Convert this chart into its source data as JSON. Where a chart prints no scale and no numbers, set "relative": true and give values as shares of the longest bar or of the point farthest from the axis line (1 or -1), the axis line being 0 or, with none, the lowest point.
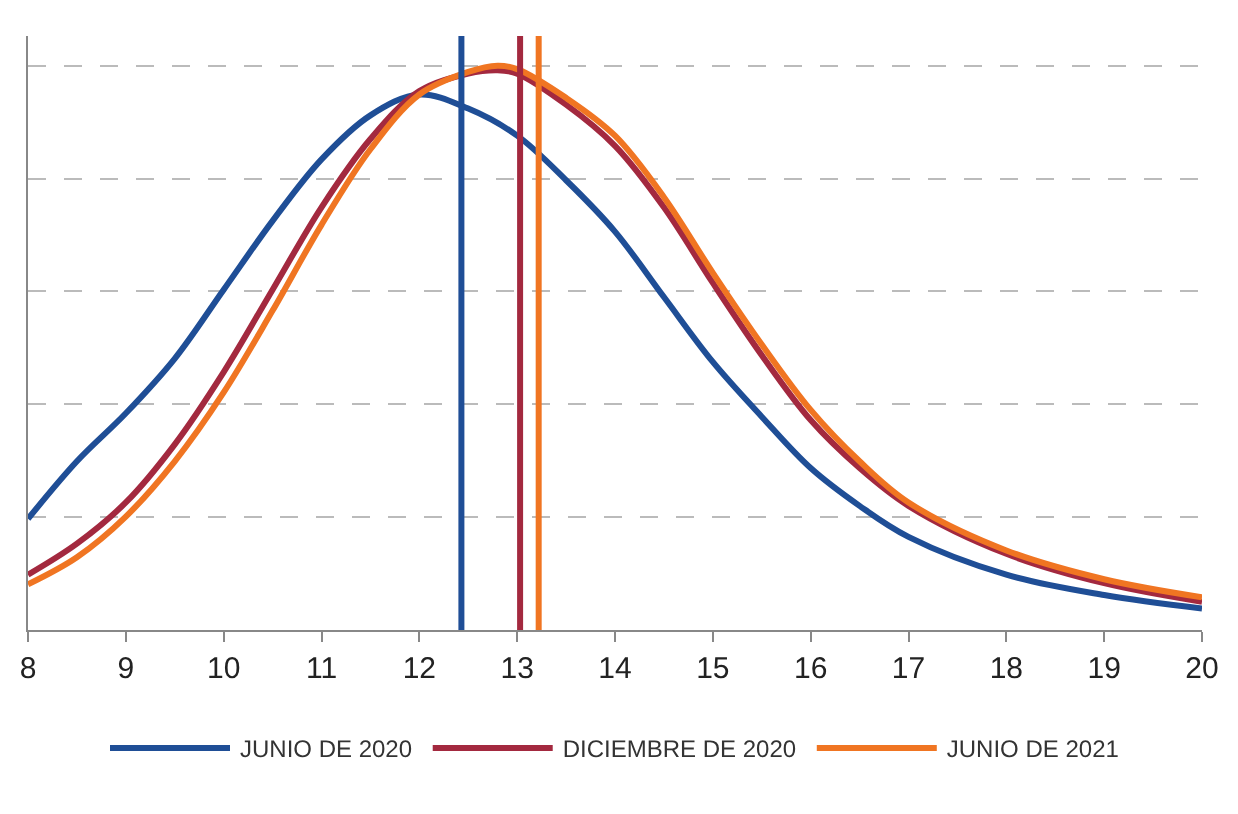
{
  "chart_data": {
    "type": "line",
    "relative": true,
    "xlim": [
      8,
      20
    ],
    "xticks": [
      8,
      9,
      10,
      11,
      12,
      13,
      14,
      15,
      16,
      17,
      18,
      19,
      20
    ],
    "grid": "y",
    "legend": "bottom",
    "marker": "none",
    "line_style": "solid",
    "series": [
      {
        "name": "JUNIO DE 2020",
        "color": "#1f4e96",
        "x": [
          8,
          8.5,
          9,
          9.5,
          10,
          10.5,
          11,
          11.5,
          12,
          12.5,
          13,
          13.5,
          14,
          14.5,
          15,
          15.5,
          16,
          16.5,
          17,
          18,
          19,
          20
        ],
        "values": [
          0.197,
          0.299,
          0.384,
          0.481,
          0.603,
          0.725,
          0.834,
          0.912,
          0.949,
          0.924,
          0.876,
          0.797,
          0.706,
          0.59,
          0.475,
          0.378,
          0.287,
          0.22,
          0.165,
          0.098,
          0.062,
          0.038
        ]
      },
      {
        "name": "DICIEMBRE DE 2020",
        "color": "#a3293f",
        "x": [
          8,
          8.5,
          9,
          9.5,
          10,
          10.5,
          11,
          11.5,
          12,
          12.5,
          12.8,
          13,
          13.5,
          14,
          14.5,
          15,
          15.5,
          16,
          16.5,
          17,
          18,
          19,
          20
        ],
        "values": [
          0.098,
          0.153,
          0.226,
          0.329,
          0.457,
          0.603,
          0.749,
          0.87,
          0.955,
          0.986,
          0.992,
          0.986,
          0.931,
          0.858,
          0.749,
          0.615,
          0.487,
          0.372,
          0.287,
          0.22,
          0.135,
          0.083,
          0.05
        ]
      },
      {
        "name": "JUNIO DE 2021",
        "color": "#f07522",
        "x": [
          8,
          8.5,
          9,
          9.5,
          10,
          10.5,
          11,
          11.5,
          12,
          12.5,
          12.8,
          13,
          13.5,
          14,
          14.5,
          15,
          15.5,
          16,
          16.5,
          17,
          18,
          19,
          20
        ],
        "values": [
          0.081,
          0.129,
          0.201,
          0.299,
          0.421,
          0.566,
          0.718,
          0.852,
          0.949,
          0.989,
          1,
          0.994,
          0.943,
          0.876,
          0.767,
          0.633,
          0.506,
          0.39,
          0.299,
          0.226,
          0.141,
          0.09,
          0.058
        ]
      }
    ],
    "ref_lines": [
      {
        "axis": "x",
        "value": 12.43,
        "color": "#1f4e96"
      },
      {
        "axis": "x",
        "value": 13.03,
        "color": "#a3293f"
      },
      {
        "axis": "x",
        "value": 13.22,
        "color": "#f07522"
      }
    ]
  }
}
